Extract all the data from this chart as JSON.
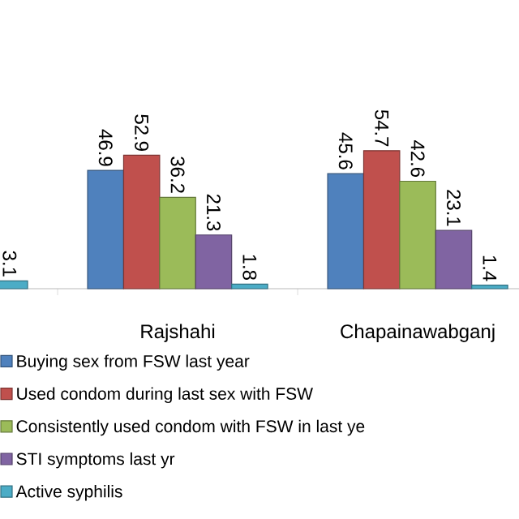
{
  "chart_data": {
    "type": "bar",
    "categories": [
      null,
      "Rajshahi",
      "Chapainawabganj"
    ],
    "series": [
      {
        "name": "Buying sex from FSW last year",
        "color": "#4f81bd",
        "values": [
          null,
          46.9,
          45.6
        ]
      },
      {
        "name": "Used condom during last sex with FSW",
        "color": "#c0504d",
        "values": [
          null,
          52.9,
          54.7
        ]
      },
      {
        "name": "Consistently used condom with FSW in last ye",
        "color": "#9bbb59",
        "values": [
          null,
          36.2,
          42.6
        ]
      },
      {
        "name": "STI symptoms last yr",
        "color": "#8064a2",
        "values": [
          null,
          21.3,
          23.1
        ]
      },
      {
        "name": "Active syphilis",
        "color": "#4bacc6",
        "values": [
          3.1,
          1.8,
          1.4
        ]
      }
    ],
    "data_labels": true,
    "legend": "bottom"
  }
}
